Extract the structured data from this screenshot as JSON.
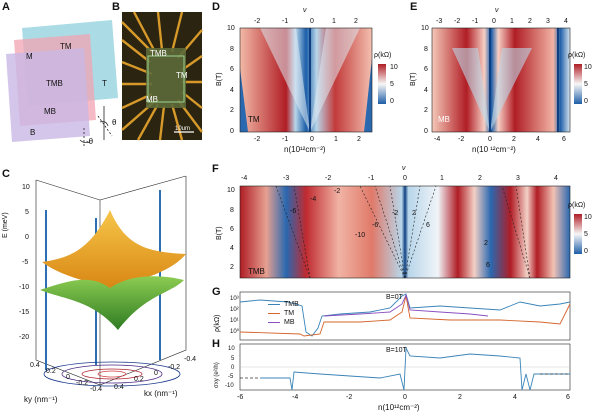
{
  "panels": {
    "A": {
      "label": "A",
      "layers": [
        "TM",
        "M",
        "TMB",
        "T",
        "MB",
        "B"
      ],
      "angles": [
        "θ",
        "-θ"
      ]
    },
    "B": {
      "label": "B",
      "regions": [
        "TMB",
        "TM",
        "MB"
      ],
      "scale_bar": "10um"
    },
    "C": {
      "label": "C",
      "ylabel": "E (meV)",
      "yticks": [
        "10",
        "5",
        "0",
        "-5",
        "-10",
        "-15",
        "-20"
      ],
      "xlabel": "kx (nm⁻¹)",
      "x2label": "ky (nm⁻¹)",
      "kxticks": [
        "0.4",
        "0.2",
        "0",
        "-0.2",
        "-0.4"
      ],
      "kyticks": [
        "0.4",
        "0.2",
        "0",
        "-0.2",
        "-0.4"
      ]
    },
    "D": {
      "label": "D",
      "tag": "TM",
      "xlabel": "n(10¹²cm⁻²)",
      "ylabel": "B(T)",
      "nu_label": "ν",
      "xticks": [
        "-2",
        "-1",
        "0",
        "1",
        "2"
      ],
      "nuticks": [
        "-2",
        "-1",
        "0",
        "1",
        "2"
      ],
      "yticks": [
        "0",
        "2",
        "4",
        "6",
        "8",
        "10"
      ],
      "cbar_label": "ρ(kΩ)",
      "cbar_ticks": [
        "10",
        "5",
        "0"
      ]
    },
    "E": {
      "label": "E",
      "tag": "MB",
      "xlabel": "n(10 ¹²cm⁻²)",
      "ylabel": "B(T)",
      "nu_label": "ν",
      "xticks": [
        "-4",
        "-2",
        "0",
        "2",
        "4",
        "6"
      ],
      "nuticks": [
        "-3",
        "-2",
        "-1",
        "0",
        "1",
        "2",
        "3",
        "4"
      ],
      "yticks": [
        "0",
        "2",
        "4",
        "6",
        "8",
        "10"
      ],
      "cbar_label": "ρ(kΩ)",
      "cbar_ticks": [
        "10",
        "5",
        "0"
      ]
    },
    "F": {
      "label": "F",
      "tag": "TMB",
      "ylabel": "B(T)",
      "nu_label": "ν",
      "nuticks": [
        "-4",
        "-3",
        "-2",
        "-1",
        "0",
        "1",
        "2",
        "3",
        "4"
      ],
      "yticks": [
        "2",
        "4",
        "6",
        "8",
        "10"
      ],
      "cbar_label": "ρ(kΩ)",
      "cbar_ticks": [
        "10",
        "5",
        "0"
      ],
      "annotations": [
        "-2",
        "-4",
        "-6",
        "-10",
        "-6",
        "-2",
        "2",
        "6",
        "2",
        "6"
      ]
    },
    "G": {
      "label": "G",
      "ylabel": "ρ(kΩ)",
      "yticks": [
        "10³",
        "10²",
        "10¹",
        "10⁰"
      ],
      "condition": "B=0T",
      "legend": [
        "TMB",
        "TM",
        "MB"
      ]
    },
    "H": {
      "label": "H",
      "ylabel": "σxy (e²/h)",
      "yticks": [
        "10",
        "5",
        "0",
        "-5",
        "-10"
      ],
      "condition": "B=10T",
      "xlabel": "n(10¹²cm⁻²)",
      "xticks": [
        "-6",
        "-4",
        "-2",
        "0",
        "2",
        "4",
        "6"
      ]
    }
  },
  "colors": {
    "teal": "#5ab0c4",
    "pink": "#e88a9c",
    "lavender": "#b8a6d8",
    "blue": "#1f5fa8",
    "red": "#b01d25",
    "tmb": "#3a84b8",
    "tm": "#d5642b",
    "mb": "#8a4fc0",
    "orange": "#f0a81e",
    "green": "#4f9a36"
  }
}
